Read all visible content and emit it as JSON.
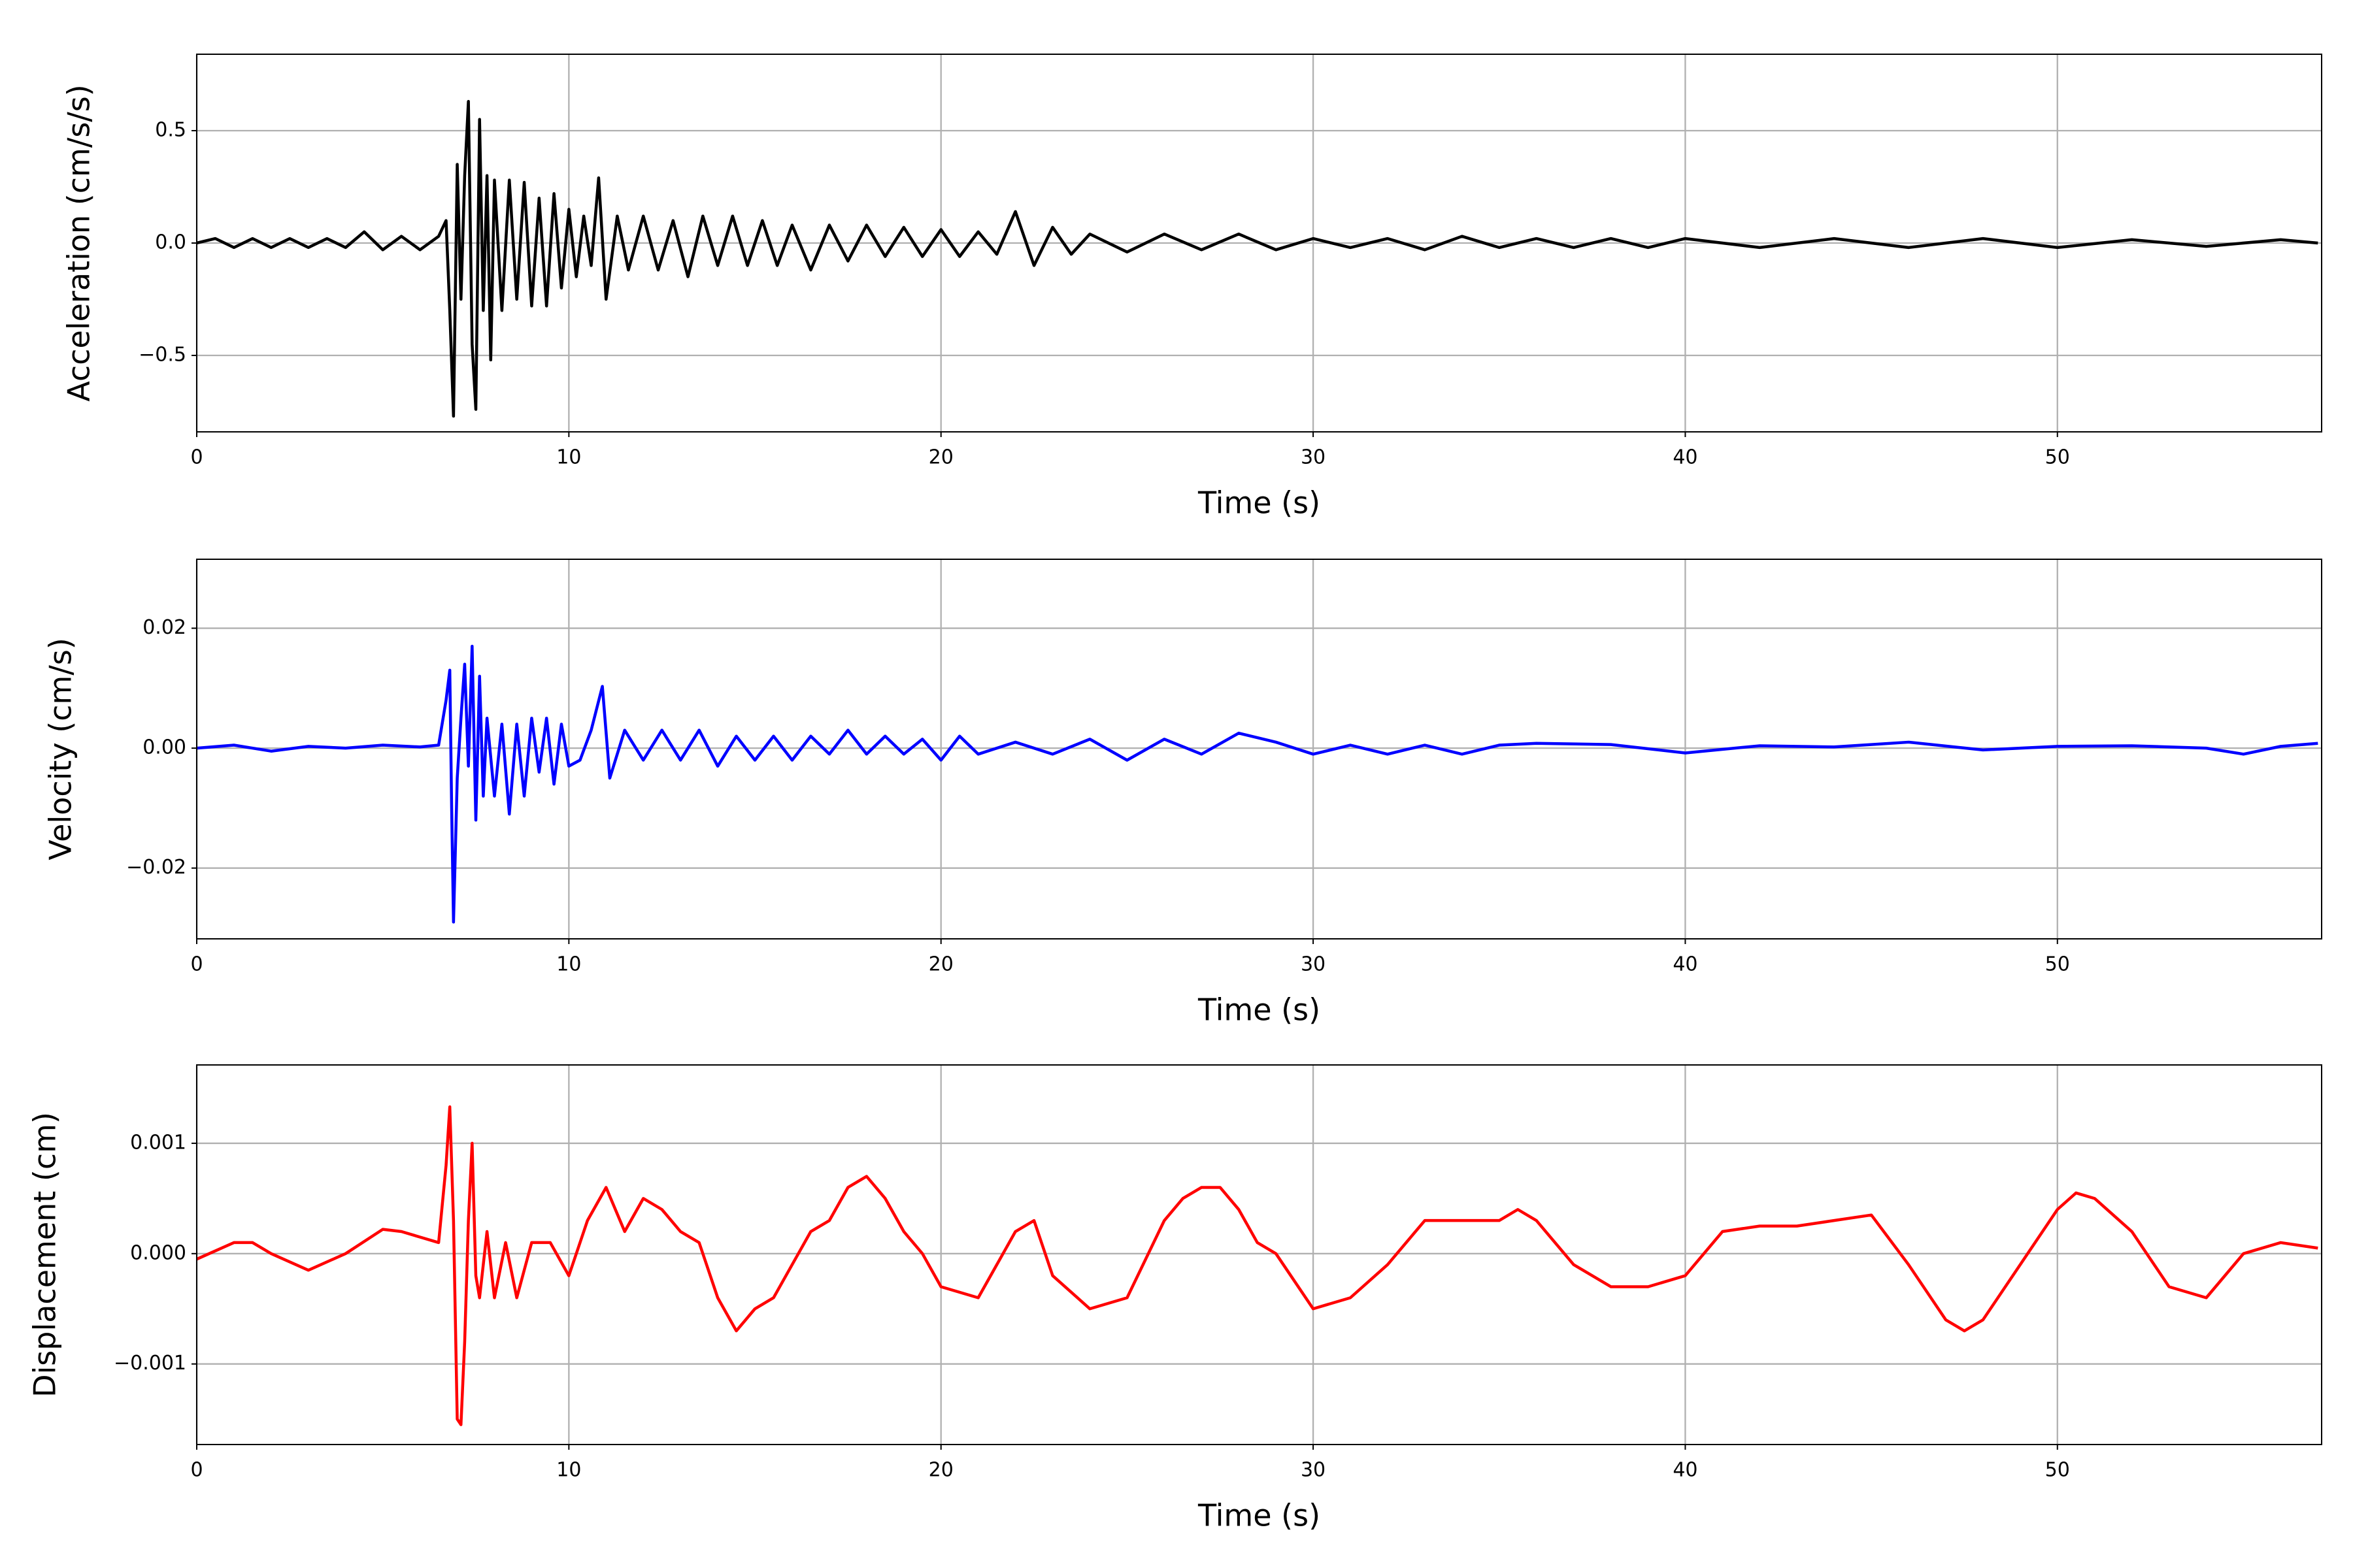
{
  "chart_data": [
    {
      "type": "line",
      "xlabel": "Time (s)",
      "ylabel": "Acceleration (cm/s/s)",
      "xlim": [
        0,
        57.1
      ],
      "xticks": [
        0,
        10,
        20,
        30,
        40,
        50
      ],
      "ylim": [
        -0.84,
        0.84
      ],
      "yticks": [
        {
          "value": -0.5,
          "label": "−0.5"
        },
        {
          "value": 0,
          "label": "0.0"
        },
        0.5
      ],
      "grid": true,
      "x": [
        0,
        0.5,
        1,
        1.5,
        2,
        2.5,
        3,
        3.5,
        4,
        4.5,
        5,
        5.5,
        6,
        6.5,
        6.7,
        6.8,
        6.9,
        7.0,
        7.1,
        7.2,
        7.3,
        7.4,
        7.5,
        7.6,
        7.7,
        7.8,
        7.9,
        8.0,
        8.2,
        8.4,
        8.6,
        8.8,
        9.0,
        9.2,
        9.4,
        9.6,
        9.8,
        10.0,
        10.2,
        10.4,
        10.6,
        10.8,
        11.0,
        11.3,
        11.6,
        12.0,
        12.4,
        12.8,
        13.2,
        13.6,
        14.0,
        14.4,
        14.8,
        15.2,
        15.6,
        16.0,
        16.5,
        17,
        17.5,
        18,
        18.5,
        19,
        19.5,
        20,
        20.5,
        21,
        21.5,
        22,
        22.5,
        23,
        23.5,
        24,
        25,
        26,
        27,
        28,
        29,
        30,
        31,
        32,
        33,
        34,
        35,
        36,
        37,
        38,
        39,
        40,
        42,
        44,
        46,
        48,
        50,
        52,
        54,
        56,
        57
      ],
      "series": [
        {
          "color": "#000000",
          "values": [
            0,
            0.02,
            -0.02,
            0.02,
            -0.02,
            0.02,
            -0.02,
            0.02,
            -0.02,
            0.05,
            -0.03,
            0.03,
            -0.03,
            0.03,
            0.1,
            -0.3,
            -0.77,
            0.35,
            -0.25,
            0.3,
            0.63,
            -0.45,
            -0.74,
            0.55,
            -0.3,
            0.3,
            -0.52,
            0.28,
            -0.3,
            0.28,
            -0.25,
            0.27,
            -0.28,
            0.2,
            -0.28,
            0.22,
            -0.2,
            0.15,
            -0.15,
            0.12,
            -0.1,
            0.29,
            -0.25,
            0.12,
            -0.12,
            0.12,
            -0.12,
            0.1,
            -0.15,
            0.12,
            -0.1,
            0.12,
            -0.1,
            0.1,
            -0.1,
            0.08,
            -0.12,
            0.08,
            -0.08,
            0.08,
            -0.06,
            0.07,
            -0.06,
            0.06,
            -0.06,
            0.05,
            -0.05,
            0.14,
            -0.1,
            0.07,
            -0.05,
            0.04,
            -0.04,
            0.04,
            -0.03,
            0.04,
            -0.03,
            0.02,
            -0.02,
            0.02,
            -0.03,
            0.03,
            -0.02,
            0.02,
            -0.02,
            0.02,
            -0.02,
            0.02,
            -0.02,
            0.02,
            -0.02,
            0.02,
            -0.02,
            0.015,
            -0.015,
            0.015,
            0
          ]
        }
      ]
    },
    {
      "type": "line",
      "xlabel": "Time (s)",
      "ylabel": "Velocity (cm/s)",
      "xlim": [
        0,
        57.1
      ],
      "xticks": [
        0,
        10,
        20,
        30,
        40,
        50
      ],
      "ylim": [
        -0.0318,
        0.0315
      ],
      "yticks": [
        {
          "value": -0.02,
          "label": "−0.02"
        },
        {
          "value": 0,
          "label": "0.00"
        },
        0.02
      ],
      "grid": true,
      "x": [
        0,
        1,
        2,
        3,
        4,
        5,
        6,
        6.5,
        6.7,
        6.8,
        6.85,
        6.9,
        7.0,
        7.1,
        7.2,
        7.3,
        7.4,
        7.5,
        7.6,
        7.7,
        7.8,
        8.0,
        8.2,
        8.4,
        8.6,
        8.8,
        9.0,
        9.2,
        9.4,
        9.6,
        9.8,
        10.0,
        10.3,
        10.6,
        10.9,
        11.1,
        11.5,
        12,
        12.5,
        13,
        13.5,
        14,
        14.5,
        15,
        15.5,
        16,
        16.5,
        17,
        17.5,
        18,
        18.5,
        19,
        19.5,
        20,
        20.5,
        21,
        22,
        23,
        24,
        25,
        26,
        27,
        28,
        29,
        30,
        31,
        32,
        33,
        34,
        35,
        36,
        38,
        40,
        42,
        44,
        46,
        48,
        50,
        52,
        54,
        55,
        56,
        57
      ],
      "series": [
        {
          "color": "#0000ff",
          "values": [
            0,
            0.0005,
            -0.0005,
            0.0003,
            0,
            0.0005,
            0.0002,
            0.0005,
            0.008,
            0.013,
            -0.01,
            -0.029,
            -0.005,
            0.005,
            0.014,
            -0.003,
            0.017,
            -0.012,
            0.012,
            -0.008,
            0.005,
            -0.008,
            0.004,
            -0.011,
            0.004,
            -0.008,
            0.005,
            -0.004,
            0.005,
            -0.006,
            0.004,
            -0.003,
            -0.002,
            0.003,
            0.0103,
            -0.005,
            0.003,
            -0.002,
            0.003,
            -0.002,
            0.003,
            -0.003,
            0.002,
            -0.002,
            0.002,
            -0.002,
            0.002,
            -0.001,
            0.003,
            -0.001,
            0.002,
            -0.001,
            0.0015,
            -0.002,
            0.002,
            -0.001,
            0.001,
            -0.001,
            0.0015,
            -0.002,
            0.0015,
            -0.001,
            0.0025,
            0.001,
            -0.001,
            0.0005,
            -0.001,
            0.0005,
            -0.001,
            0.0005,
            0.0008,
            0.0006,
            -0.0008,
            0.0004,
            0.0002,
            0.001,
            -0.0003,
            0.0003,
            0.0004,
            0,
            -0.001,
            0.0003,
            0.0008
          ]
        }
      ]
    },
    {
      "type": "line",
      "xlabel": "Time (s)",
      "ylabel": "Displacement (cm)",
      "xlim": [
        0,
        57.1
      ],
      "xticks": [
        0,
        10,
        20,
        30,
        40,
        50
      ],
      "ylim": [
        -0.00173,
        0.00171
      ],
      "yticks": [
        {
          "value": -0.001,
          "label": "−0.001"
        },
        {
          "value": 0,
          "label": "0.000"
        },
        0.001
      ],
      "grid": true,
      "x": [
        0,
        1,
        1.5,
        2,
        3,
        4,
        5,
        5.5,
        6,
        6.5,
        6.7,
        6.8,
        6.9,
        7.0,
        7.1,
        7.2,
        7.3,
        7.4,
        7.5,
        7.6,
        7.8,
        8.0,
        8.3,
        8.6,
        9.0,
        9.5,
        10,
        10.5,
        11,
        11.5,
        12,
        12.5,
        13,
        13.5,
        14,
        14.5,
        15,
        15.5,
        16,
        16.5,
        17,
        17.5,
        18,
        18.5,
        19,
        19.5,
        20,
        21,
        22,
        22.5,
        23,
        24,
        25,
        26,
        26.5,
        27,
        27.5,
        28,
        28.5,
        29,
        30,
        31,
        32,
        33,
        34,
        35,
        35.5,
        36,
        37,
        38,
        39,
        40,
        41,
        42,
        43,
        44,
        45,
        46,
        47,
        47.5,
        48,
        49,
        50,
        50.5,
        51,
        52,
        53,
        54,
        55,
        56,
        57
      ],
      "series": [
        {
          "color": "#ff0000",
          "values": [
            -5e-05,
            0.0001,
            0.0001,
            0,
            -0.00015,
            0,
            0.00022,
            0.0002,
            0.00015,
            0.0001,
            0.0008,
            0.00133,
            0.0003,
            -0.0015,
            -0.00155,
            -0.0008,
            0.0003,
            0.001,
            -0.0002,
            -0.0004,
            0.0002,
            -0.0004,
            0.0001,
            -0.0004,
            0.0001,
            0.0001,
            -0.0002,
            0.0003,
            0.0006,
            0.0002,
            0.0005,
            0.0004,
            0.0002,
            0.0001,
            -0.0004,
            -0.0007,
            -0.0005,
            -0.0004,
            -0.0001,
            0.0002,
            0.0003,
            0.0006,
            0.0007,
            0.0005,
            0.0002,
            0,
            -0.0003,
            -0.0004,
            0.0002,
            0.0003,
            -0.0002,
            -0.0005,
            -0.0004,
            0.0003,
            0.0005,
            0.0006,
            0.0006,
            0.0004,
            0.0001,
            0,
            -0.0005,
            -0.0004,
            -0.0001,
            0.0003,
            0.0003,
            0.0003,
            0.0004,
            0.0003,
            -0.0001,
            -0.0003,
            -0.0003,
            -0.0002,
            0.0002,
            0.00025,
            0.00025,
            0.0003,
            0.00035,
            -0.0001,
            -0.0006,
            -0.0007,
            -0.0006,
            -0.0001,
            0.0004,
            0.00055,
            0.0005,
            0.0002,
            -0.0003,
            -0.0004,
            0,
            0.0001,
            5e-05
          ]
        }
      ]
    }
  ]
}
